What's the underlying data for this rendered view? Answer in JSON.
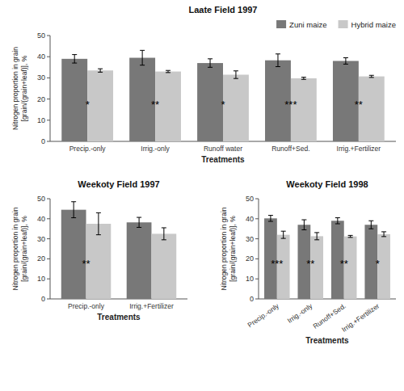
{
  "chart_data": [
    {
      "type": "bar",
      "title": "Laate Field 1997",
      "xlabel": "Treatments",
      "ylabel": "Nitrogen proportion in grain\n[grain/(grain+leaf)], %",
      "categories": [
        "Precip.-only",
        "Irrig.-only",
        "Runoff water",
        "Runoff+Sed.",
        "Irrig.+Fertilizer"
      ],
      "series": [
        {
          "name": "Zuni maize",
          "color": "#787878",
          "values": [
            39.0,
            39.5,
            37.0,
            38.3,
            38.0
          ],
          "errors": [
            2.0,
            3.5,
            2.0,
            3.0,
            1.5
          ]
        },
        {
          "name": "Hybrid maize",
          "color": "#c8c8c8",
          "values": [
            33.5,
            33.0,
            31.5,
            29.8,
            30.7
          ],
          "errors": [
            0.8,
            0.5,
            1.8,
            0.5,
            0.5
          ]
        }
      ],
      "annotations": [
        {
          "text": "*",
          "category": "Precip.-only",
          "y": 17.5
        },
        {
          "text": "**",
          "category": "Irrig.-only",
          "y": 17.5
        },
        {
          "text": "*",
          "category": "Runoff water",
          "y": 17.5
        },
        {
          "text": "***",
          "category": "Runoff+Sed.",
          "y": 17.5
        },
        {
          "text": "**",
          "category": "Irrig.+Fertilizer",
          "y": 17.5
        }
      ],
      "ylim": [
        0,
        50
      ],
      "yticks": [
        0,
        10,
        20,
        30,
        40,
        50
      ],
      "grid": false,
      "legend": "upper right"
    },
    {
      "type": "bar",
      "title": "Weekoty Field 1997",
      "xlabel": "Treatments",
      "ylabel": "Nitrogen proportion in grain\n[grain/(grain+leaf)], %",
      "categories": [
        "Precip.-only",
        "Irrig.+Fertilizer"
      ],
      "series": [
        {
          "color": "#787878",
          "values": [
            44.5,
            38.2
          ],
          "errors": [
            4.0,
            2.5
          ]
        },
        {
          "color": "#c8c8c8",
          "values": [
            37.5,
            32.5
          ],
          "errors": [
            5.5,
            3.0
          ]
        }
      ],
      "annotations": [
        {
          "text": "**",
          "category": "Precip.-only",
          "y": 17.5
        }
      ],
      "ylim": [
        0,
        50
      ],
      "yticks": [
        0,
        10,
        20,
        30,
        40,
        50
      ],
      "grid": false
    },
    {
      "type": "bar",
      "title": "Weekoty Field 1998",
      "xlabel": "Treatments",
      "ylabel": "Nitrogen proportion in grain\n[grain/(grain+leaf)], %",
      "categories": [
        "Precip.-only",
        "Irrig.-only",
        "Runoff+Sed.",
        "Irrig.+Fertilizer"
      ],
      "series": [
        {
          "color": "#787878",
          "values": [
            40.2,
            37.0,
            39.0,
            37.0
          ],
          "errors": [
            1.5,
            2.5,
            1.5,
            2.0
          ]
        },
        {
          "color": "#c8c8c8",
          "values": [
            32.0,
            31.3,
            31.2,
            32.3
          ],
          "errors": [
            1.8,
            1.8,
            0.5,
            1.2
          ]
        }
      ],
      "annotations": [
        {
          "text": "***",
          "category": "Precip.-only",
          "y": 17.5
        },
        {
          "text": "**",
          "category": "Irrig.-only",
          "y": 17.5
        },
        {
          "text": "**",
          "category": "Runoff+Sed.",
          "y": 17.5
        },
        {
          "text": "*",
          "category": "Irrig.+Fertilizer",
          "y": 17.5
        }
      ],
      "ylim": [
        0,
        50
      ],
      "yticks": [
        0,
        10,
        20,
        30,
        40,
        50
      ],
      "grid": false
    }
  ]
}
